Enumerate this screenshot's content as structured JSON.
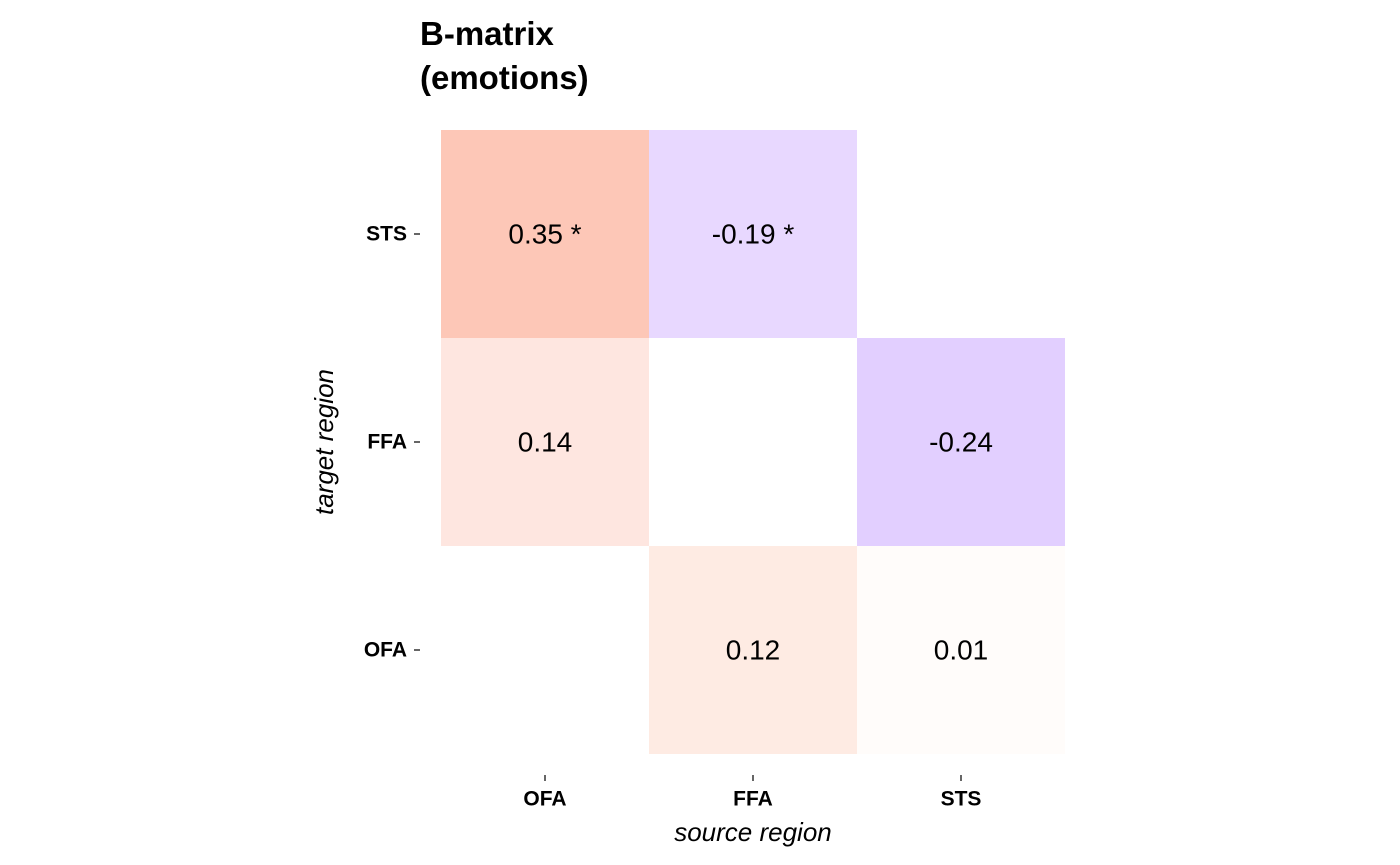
{
  "chart_data": {
    "type": "heatmap",
    "title": "B-matrix\n(emotions)",
    "x_label": "source region",
    "y_label": "target region",
    "x_categories": [
      "OFA",
      "FFA",
      "STS"
    ],
    "y_categories": [
      "OFA",
      "FFA",
      "STS"
    ],
    "values": [
      [
        null,
        0.12,
        0.01
      ],
      [
        0.14,
        null,
        -0.24
      ],
      [
        0.35,
        -0.19,
        null
      ]
    ],
    "value_labels": [
      [
        null,
        "0.12",
        "0.01"
      ],
      [
        "0.14",
        null,
        "-0.24"
      ],
      [
        "0.35 *",
        "-0.19 *",
        null
      ]
    ],
    "colors": [
      [
        null,
        "#feebe3",
        "#fffcfa"
      ],
      [
        "#fee6e0",
        null,
        "#e2cfff"
      ],
      [
        "#fdc7b7",
        "#e8d8ff",
        null
      ]
    ]
  }
}
